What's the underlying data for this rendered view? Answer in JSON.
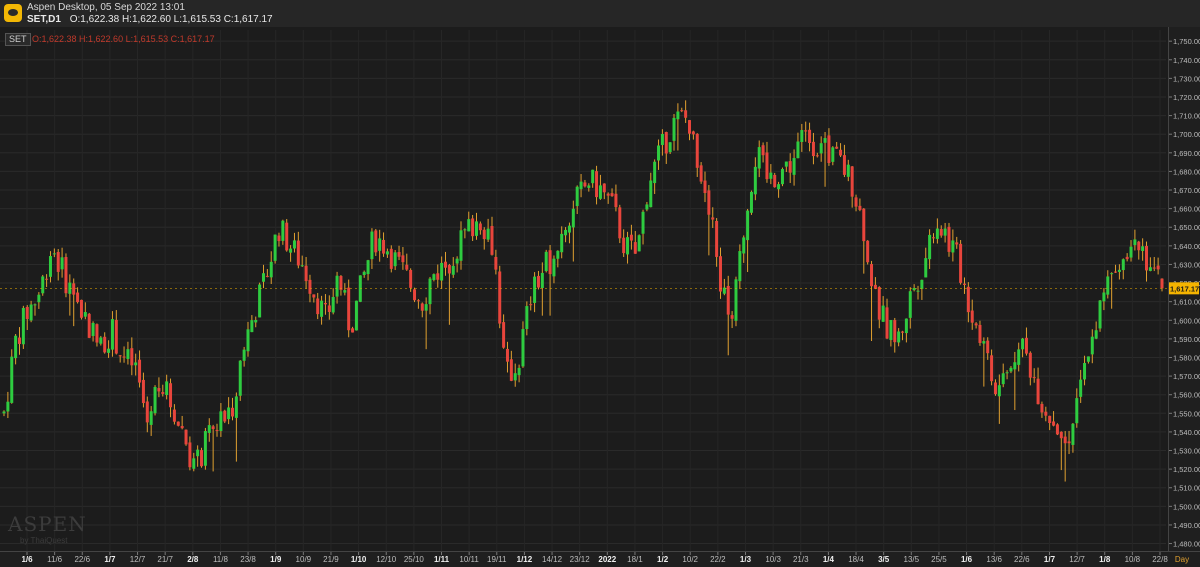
{
  "window": {
    "app_title": "Aspen Desktop, 05 Sep 2022 13:01",
    "symbol_timeframe": "SET,D1",
    "ohlc_text": "O:1,622.38 H:1,622.60 L:1,615.53 C:1,617.17"
  },
  "legend": {
    "tag": "SET",
    "ohlc_text": "O:1,622.38 H:1,622.60 L:1,615.53 C:1,617.17"
  },
  "watermark": {
    "brand": "ASPEN",
    "sub": "by ThaiQuest"
  },
  "colors": {
    "up": "#2ecc40",
    "down": "#e8453c",
    "wick": "#e0a030",
    "last_price_bg": "#f5b400",
    "background": "#1c1c1c"
  },
  "chart_data": {
    "type": "candlestick",
    "symbol": "SET",
    "timeframe": "D1",
    "y_range": [
      1476,
      1756
    ],
    "y_ticks": [
      1480,
      1490,
      1500,
      1510,
      1520,
      1530,
      1540,
      1550,
      1560,
      1570,
      1580,
      1590,
      1600,
      1610,
      1620,
      1630,
      1640,
      1650,
      1660,
      1670,
      1680,
      1690,
      1700,
      1710,
      1720,
      1730,
      1740,
      1750
    ],
    "y_tick_labels": [
      "1,480.00",
      "1,490.00",
      "1,500.00",
      "1,510.00",
      "1,520.00",
      "1,530.00",
      "1,540.00",
      "1,550.00",
      "1,560.00",
      "1,570.00",
      "1,580.00",
      "1,590.00",
      "1,600.00",
      "1,610.00",
      "1,620.00",
      "1,630.00",
      "1,640.00",
      "1,650.00",
      "1,660.00",
      "1,670.00",
      "1,680.00",
      "1,690.00",
      "1,700.00",
      "1,710.00",
      "1,720.00",
      "1,730.00",
      "1,740.00",
      "1,750.00"
    ],
    "x_tick_labels": [
      "1/6",
      "11/6",
      "22/6",
      "1/7",
      "12/7",
      "21/7",
      "2/8",
      "11/8",
      "23/8",
      "1/9",
      "10/9",
      "21/9",
      "1/10",
      "12/10",
      "25/10",
      "1/11",
      "10/11",
      "19/11",
      "1/12",
      "14/12",
      "23/12",
      "2022",
      "18/1",
      "1/2",
      "10/2",
      "22/2",
      "1/3",
      "10/3",
      "21/3",
      "1/4",
      "18/4",
      "3/5",
      "13/5",
      "25/5",
      "1/6",
      "13/6",
      "22/6",
      "1/7",
      "12/7",
      "1/8",
      "10/8",
      "22/8"
    ],
    "x_tick_bold": [
      "1/6",
      "2/8",
      "1/9",
      "1/10",
      "1/11",
      "1/12",
      "2022",
      "1/2",
      "1/3",
      "1/4",
      "3/5",
      "1/6",
      "1/7",
      "1/8"
    ],
    "x_axis_unit": "Day",
    "last_close_label": "1,617.17",
    "last_close": 1617.17,
    "anchors": [
      1550,
      1590,
      1605,
      1615,
      1640,
      1625,
      1610,
      1600,
      1585,
      1595,
      1580,
      1575,
      1545,
      1570,
      1555,
      1540,
      1520,
      1535,
      1545,
      1550,
      1585,
      1605,
      1625,
      1650,
      1640,
      1630,
      1615,
      1600,
      1625,
      1595,
      1620,
      1645,
      1640,
      1630,
      1620,
      1610,
      1625,
      1630,
      1640,
      1650,
      1655,
      1640,
      1570,
      1575,
      1610,
      1625,
      1635,
      1650,
      1665,
      1675,
      1670,
      1660,
      1640,
      1635,
      1675,
      1690,
      1705,
      1710,
      1690,
      1665,
      1620,
      1600,
      1650,
      1690,
      1675,
      1680,
      1685,
      1700,
      1695,
      1690,
      1685,
      1675,
      1650,
      1610,
      1595,
      1590,
      1615,
      1630,
      1655,
      1645,
      1630,
      1605,
      1590,
      1560,
      1570,
      1590,
      1575,
      1555,
      1545,
      1535,
      1555,
      1590,
      1610,
      1630,
      1640,
      1645,
      1630,
      1617
    ]
  }
}
